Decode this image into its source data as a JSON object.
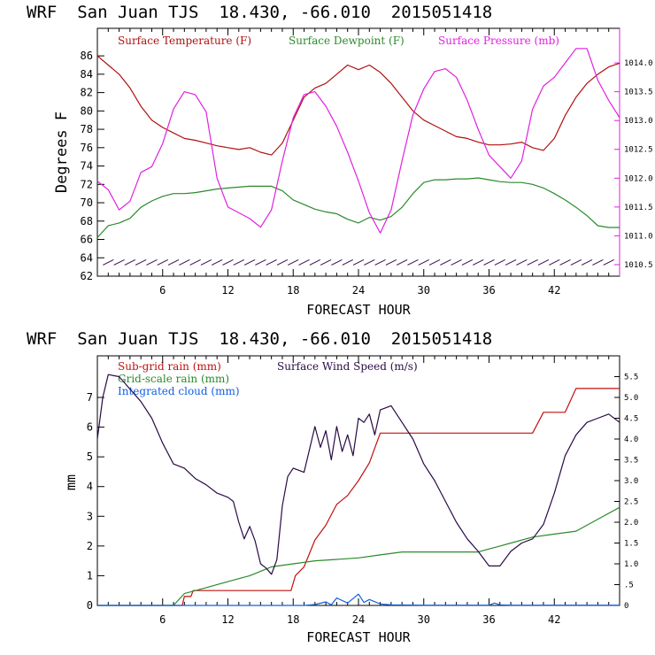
{
  "colors": {
    "temperature": "#b01010",
    "dewpoint": "#2a8a2a",
    "pressure": "#e020e0",
    "wind_barb": "#3a0a50",
    "subgrid": "#c01010",
    "gridscale": "#2a8a2a",
    "cloud": "#1060e0",
    "windspeed": "#2a0a45"
  },
  "chart_data": [
    {
      "type": "line",
      "title": "WRF  San Juan TJS  18.430, -66.010  2015051418",
      "xlabel": "FORECAST HOUR",
      "ylabel": "Degrees F",
      "xlim": [
        0,
        48
      ],
      "ylim": [
        62,
        89
      ],
      "y2lim": [
        1010.3,
        1014.6
      ],
      "xticks": [
        6,
        12,
        18,
        24,
        30,
        36,
        42
      ],
      "xtick_labels": [
        "6",
        "12",
        "18",
        "24",
        "30",
        "36",
        "42"
      ],
      "yticks": [
        62,
        64,
        66,
        68,
        70,
        72,
        74,
        76,
        78,
        80,
        82,
        84,
        86
      ],
      "ytick_labels": [
        "62",
        "64",
        "66",
        "68",
        "70",
        "72",
        "74",
        "76",
        "78",
        "80",
        "82",
        "84",
        "86"
      ],
      "y2ticks": [
        1010.5,
        1011.0,
        1011.5,
        1012.0,
        1012.5,
        1013.0,
        1013.5,
        1014.0
      ],
      "y2tick_labels": [
        "1010.5",
        "1011.0",
        "1011.5",
        "1012.0",
        "1012.5",
        "1013.0",
        "1013.5",
        "1014.0"
      ],
      "series": [
        {
          "name": "Surface Temperature (F)",
          "axis": "left",
          "color": "#b01010",
          "x": [
            0,
            1,
            2,
            3,
            4,
            5,
            6,
            7,
            8,
            9,
            10,
            11,
            12,
            13,
            14,
            15,
            16,
            17,
            18,
            19,
            20,
            21,
            22,
            23,
            24,
            25,
            26,
            27,
            28,
            29,
            30,
            31,
            32,
            33,
            34,
            35,
            36,
            37,
            38,
            39,
            40,
            41,
            42,
            43,
            44,
            45,
            46,
            47,
            48
          ],
          "y": [
            86,
            85,
            84,
            82.5,
            80.5,
            79,
            78.2,
            77.6,
            77,
            76.8,
            76.5,
            76.2,
            76,
            75.8,
            76,
            75.5,
            75.2,
            76.5,
            79,
            81.5,
            82.5,
            83,
            84,
            85,
            84.5,
            85,
            84.2,
            83,
            81.5,
            80,
            79,
            78.4,
            77.8,
            77.2,
            77,
            76.6,
            76.3,
            76.3,
            76.4,
            76.6,
            76,
            75.7,
            77,
            79.5,
            81.5,
            83,
            84,
            84.8,
            85.2
          ]
        },
        {
          "name": "Surface Dewpoint (F)",
          "axis": "left",
          "color": "#2a8a2a",
          "x": [
            0,
            1,
            2,
            3,
            4,
            5,
            6,
            7,
            8,
            9,
            10,
            11,
            12,
            13,
            14,
            15,
            16,
            17,
            18,
            19,
            20,
            21,
            22,
            23,
            24,
            25,
            26,
            27,
            28,
            29,
            30,
            31,
            32,
            33,
            34,
            35,
            36,
            37,
            38,
            39,
            40,
            41,
            42,
            43,
            44,
            45,
            46,
            47,
            48
          ],
          "y": [
            66.2,
            67.5,
            67.8,
            68.3,
            69.5,
            70.2,
            70.7,
            71,
            71,
            71.1,
            71.3,
            71.5,
            71.6,
            71.7,
            71.8,
            71.8,
            71.8,
            71.3,
            70.3,
            69.8,
            69.3,
            69,
            68.8,
            68.2,
            67.8,
            68.4,
            68.1,
            68.5,
            69.5,
            71,
            72.2,
            72.5,
            72.5,
            72.6,
            72.6,
            72.7,
            72.5,
            72.3,
            72.2,
            72.2,
            72,
            71.6,
            71,
            70.3,
            69.5,
            68.6,
            67.5,
            67.3,
            67.3
          ]
        },
        {
          "name": "Surface Pressure (mb)",
          "axis": "right",
          "color": "#e020e0",
          "x": [
            0,
            1,
            2,
            3,
            4,
            5,
            6,
            7,
            8,
            9,
            10,
            11,
            12,
            13,
            14,
            15,
            16,
            17,
            18,
            19,
            20,
            21,
            22,
            23,
            24,
            25,
            26,
            27,
            28,
            29,
            30,
            31,
            32,
            33,
            34,
            35,
            36,
            37,
            38,
            39,
            40,
            41,
            42,
            43,
            44,
            45,
            46,
            47,
            48
          ],
          "y": [
            1011.95,
            1011.8,
            1011.45,
            1011.6,
            1012.1,
            1012.2,
            1012.6,
            1013.2,
            1013.5,
            1013.45,
            1013.15,
            1012.0,
            1011.5,
            1011.4,
            1011.3,
            1011.15,
            1011.45,
            1012.3,
            1013.05,
            1013.45,
            1013.5,
            1013.25,
            1012.9,
            1012.45,
            1011.95,
            1011.4,
            1011.05,
            1011.45,
            1012.3,
            1013.1,
            1013.55,
            1013.85,
            1013.9,
            1013.75,
            1013.35,
            1012.85,
            1012.4,
            1012.2,
            1012.0,
            1012.3,
            1013.2,
            1013.6,
            1013.75,
            1014.0,
            1014.25,
            1014.25,
            1013.7,
            1013.35,
            1013.05
          ]
        },
        {
          "name": "Wind barbs",
          "axis": "left",
          "color": "#3a0a50",
          "x": [
            1,
            2,
            3,
            4,
            5,
            6,
            7,
            8,
            9,
            10,
            11,
            12,
            13,
            14,
            15,
            16,
            17,
            18,
            19,
            20,
            21,
            22,
            23,
            24,
            25,
            26,
            27,
            28,
            29,
            30,
            31,
            32,
            33,
            34,
            35,
            36,
            37,
            38,
            39,
            40,
            41,
            42,
            43,
            44,
            45,
            46,
            47
          ],
          "y": [
            63.5,
            63.5,
            63.5,
            63.5,
            63.5,
            63.5,
            63.5,
            63.5,
            63.5,
            63.5,
            63.5,
            63.5,
            63.5,
            63.5,
            63.5,
            63.5,
            63.5,
            63.5,
            63.5,
            63.5,
            63.5,
            63.5,
            63.5,
            63.5,
            63.5,
            63.5,
            63.5,
            63.5,
            63.5,
            63.5,
            63.5,
            63.5,
            63.5,
            63.5,
            63.5,
            63.5,
            63.5,
            63.5,
            63.5,
            63.5,
            63.5,
            63.5,
            63.5,
            63.5,
            63.5,
            63.5,
            63.5
          ]
        }
      ],
      "legend": [
        "Surface Temperature (F)",
        "Surface Dewpoint (F)",
        "Surface Pressure (mb)"
      ]
    },
    {
      "type": "line",
      "title": "WRF  San Juan TJS  18.430, -66.010  2015051418",
      "xlabel": "FORECAST HOUR",
      "ylabel": "mm",
      "xlim": [
        0,
        48
      ],
      "ylim": [
        0,
        8.4
      ],
      "y2lim": [
        0,
        6.0
      ],
      "xticks": [
        6,
        12,
        18,
        24,
        30,
        36,
        42
      ],
      "xtick_labels": [
        "6",
        "12",
        "18",
        "24",
        "30",
        "36",
        "42"
      ],
      "yticks": [
        0,
        1,
        2,
        3,
        4,
        5,
        6,
        7
      ],
      "ytick_labels": [
        "0",
        "1",
        "2",
        "3",
        "4",
        "5",
        "6",
        "7"
      ],
      "y2ticks": [
        0,
        0.5,
        1,
        1.5,
        2,
        2.5,
        3,
        3.5,
        4,
        4.5,
        5,
        5.5
      ],
      "y2tick_labels": [
        "0",
        ".5",
        "1.0",
        "1.5",
        "2.0",
        "2.5",
        "3.0",
        "3.5",
        "4.0",
        "4.5",
        "5.0",
        "5.5"
      ],
      "series": [
        {
          "name": "Sub-grid rain (mm)",
          "axis": "left",
          "color": "#c01010",
          "x": [
            0,
            7.8,
            8,
            8.6,
            8.8,
            12,
            17.8,
            18.2,
            19,
            20,
            21,
            22,
            23,
            24,
            25,
            26,
            27,
            28,
            30,
            35,
            38,
            40,
            41,
            42,
            43,
            44,
            45,
            46,
            48
          ],
          "y": [
            0,
            0,
            0.3,
            0.3,
            0.5,
            0.5,
            0.5,
            1.0,
            1.3,
            2.2,
            2.7,
            3.4,
            3.7,
            4.2,
            4.8,
            5.8,
            5.8,
            5.8,
            5.8,
            5.8,
            5.8,
            5.8,
            6.5,
            6.5,
            6.5,
            7.3,
            7.3,
            7.3,
            7.3
          ]
        },
        {
          "name": "Grid-scale rain (mm)",
          "axis": "left",
          "color": "#2a8a2a",
          "x": [
            0,
            7,
            8,
            10,
            12,
            14,
            16,
            18,
            20,
            22,
            24,
            26,
            28,
            30,
            35,
            36,
            37,
            38,
            40,
            42,
            44,
            46,
            48
          ],
          "y": [
            0,
            0,
            0.4,
            0.6,
            0.8,
            1.0,
            1.3,
            1.4,
            1.5,
            1.55,
            1.6,
            1.7,
            1.8,
            1.8,
            1.8,
            1.9,
            2.0,
            2.1,
            2.3,
            2.4,
            2.5,
            2.9,
            3.3
          ]
        },
        {
          "name": "Integrated cloud (mm)",
          "axis": "left",
          "color": "#1060e0",
          "x": [
            0,
            19,
            20,
            21,
            21.5,
            22,
            23,
            24,
            24.5,
            25,
            26,
            27,
            30,
            36,
            36.5,
            37,
            38,
            48
          ],
          "y": [
            0,
            0,
            0.03,
            0.12,
            0.02,
            0.25,
            0.08,
            0.38,
            0.1,
            0.2,
            0.05,
            0.02,
            0.01,
            0.01,
            0.08,
            0.02,
            0.01,
            0.01
          ]
        },
        {
          "name": "Surface Wind Speed (m/s)",
          "axis": "right",
          "color": "#2a0a45",
          "x": [
            0,
            0.5,
            1,
            2,
            3,
            4,
            5,
            6,
            7,
            8,
            9,
            10,
            11,
            12,
            12.5,
            13,
            13.5,
            14,
            14.5,
            15,
            15.5,
            16,
            16.5,
            17,
            17.5,
            18,
            19,
            20,
            20.5,
            21,
            21.5,
            22,
            22.5,
            23,
            23.5,
            24,
            24.5,
            25,
            25.5,
            26,
            27,
            28,
            29,
            30,
            31,
            32,
            33,
            34,
            35,
            36,
            37,
            38,
            39,
            40,
            41,
            42,
            43,
            44,
            45,
            46,
            47,
            48
          ],
          "y": [
            4.0,
            5.0,
            5.55,
            5.5,
            5.2,
            4.9,
            4.5,
            3.9,
            3.4,
            3.3,
            3.05,
            2.9,
            2.7,
            2.6,
            2.5,
            2.0,
            1.6,
            1.9,
            1.55,
            1.0,
            0.9,
            0.75,
            1.1,
            2.4,
            3.1,
            3.3,
            3.2,
            4.3,
            3.8,
            4.2,
            3.5,
            4.3,
            3.7,
            4.1,
            3.6,
            4.5,
            4.4,
            4.6,
            4.1,
            4.7,
            4.8,
            4.4,
            4.0,
            3.4,
            3.0,
            2.5,
            2.0,
            1.6,
            1.3,
            0.95,
            0.95,
            1.3,
            1.5,
            1.6,
            1.95,
            2.7,
            3.6,
            4.1,
            4.4,
            4.5,
            4.6,
            4.4
          ]
        }
      ],
      "legend": [
        "Sub-grid rain (mm)",
        "Surface Wind Speed (m/s)",
        "Grid-scale rain (mm)",
        "Integrated cloud (mm)"
      ]
    }
  ]
}
